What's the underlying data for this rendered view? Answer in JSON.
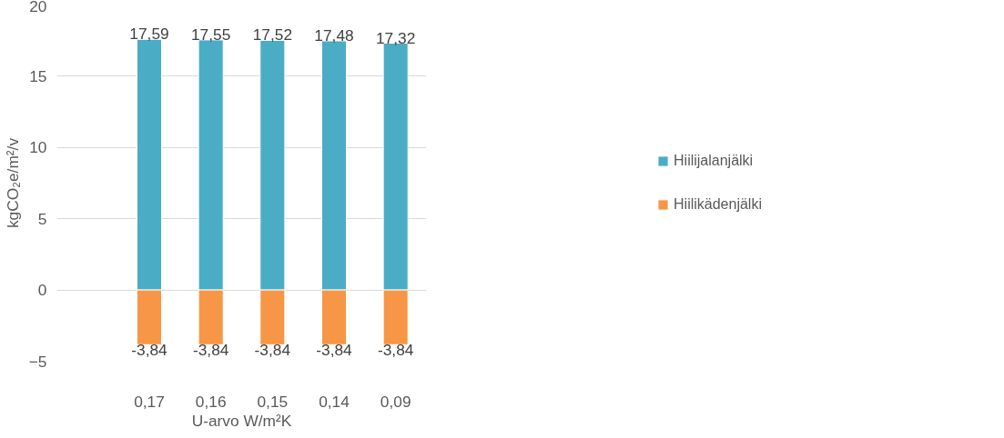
{
  "chart_data": {
    "type": "bar",
    "stacked": true,
    "xlabel": "U-arvo W/m²K",
    "ylabel": "kgCO₂e/m²/v",
    "categories": [
      null,
      "0,17",
      "0,16",
      "0,15",
      "0,14",
      "0,09"
    ],
    "series": [
      {
        "name": "Hiilijalanjälki",
        "color": "#4bacc6",
        "values": [
          null,
          17.59,
          17.55,
          17.52,
          17.48,
          17.32
        ],
        "value_labels": [
          null,
          "17,59",
          "17,55",
          "17,52",
          "17,48",
          "17,32"
        ]
      },
      {
        "name": "Hiilikädenjälki",
        "color": "#f79646",
        "values": [
          null,
          -3.84,
          -3.84,
          -3.84,
          -3.84,
          -3.84
        ],
        "value_labels": [
          null,
          "-3,84",
          "-3,84",
          "-3,84",
          "-3,84",
          "-3,84"
        ]
      }
    ],
    "ylim": [
      -5,
      20
    ],
    "yticks": [
      -5,
      0,
      5,
      10,
      15,
      20
    ],
    "grid": "y",
    "legend": "right"
  }
}
